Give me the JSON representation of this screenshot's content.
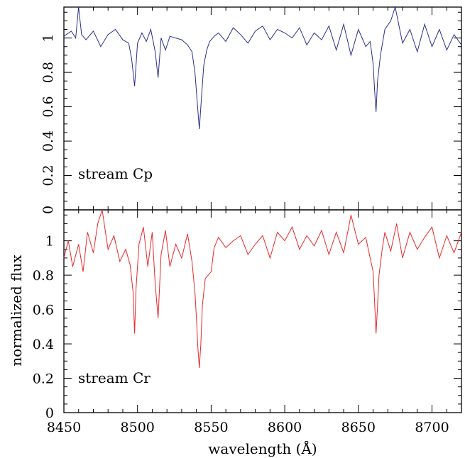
{
  "chart_data": {
    "type": "line",
    "xlabel": "wavelength (Å)",
    "ylabel": "normalized flux",
    "xlim": [
      8450,
      8720
    ],
    "x_ticks": [
      8450,
      8500,
      8550,
      8600,
      8650,
      8700
    ],
    "grid": false,
    "panels": [
      {
        "label": "stream Cp",
        "color": "#2a2f8f",
        "ylim": [
          0,
          1.18
        ],
        "y_ticks": [
          0,
          0.2,
          0.4,
          0.6,
          0.8,
          1
        ],
        "y_tick_labels": [
          "0",
          "0.2",
          "0.4",
          "0.6",
          "0.8",
          "1"
        ],
        "series": [
          {
            "x": [
              8450,
              8455,
              8458,
              8460,
              8462,
              8465,
              8470,
              8475,
              8480,
              8485,
              8490,
              8494,
              8496,
              8498,
              8500,
              8503,
              8506,
              8509,
              8512,
              8514,
              8516,
              8519,
              8522,
              8526,
              8530,
              8534,
              8537,
              8539,
              8541,
              8542,
              8543,
              8545,
              8547,
              8549,
              8552,
              8555,
              8560,
              8565,
              8570,
              8575,
              8580,
              8585,
              8590,
              8595,
              8600,
              8605,
              8610,
              8615,
              8620,
              8625,
              8630,
              8635,
              8640,
              8645,
              8650,
              8655,
              8658,
              8660,
              8661,
              8662,
              8663,
              8665,
              8668,
              8672,
              8675,
              8680,
              8685,
              8690,
              8695,
              8700,
              8705,
              8710,
              8715,
              8720
            ],
            "y": [
              1.01,
              1.04,
              1.0,
              1.2,
              1.02,
              0.99,
              1.04,
              0.95,
              1.02,
              1.05,
              0.99,
              0.97,
              0.88,
              0.72,
              0.97,
              1.03,
              0.98,
              1.05,
              0.92,
              0.77,
              1.0,
              0.93,
              1.01,
              1.0,
              0.99,
              0.96,
              0.92,
              0.8,
              0.58,
              0.47,
              0.6,
              0.84,
              0.93,
              0.98,
              1.01,
              1.03,
              0.98,
              1.06,
              1.02,
              0.97,
              1.04,
              1.07,
              0.99,
              1.05,
              1.03,
              1.0,
              1.06,
              0.96,
              1.03,
              0.99,
              1.07,
              0.93,
              1.08,
              0.9,
              1.05,
              0.95,
              0.98,
              0.85,
              0.7,
              0.57,
              0.75,
              0.9,
              1.05,
              1.1,
              1.2,
              0.97,
              1.05,
              0.92,
              1.08,
              0.95,
              1.05,
              0.93,
              1.02,
              0.96
            ]
          }
        ]
      },
      {
        "label": "stream Cr",
        "color": "#e8282a",
        "ylim": [
          0,
          1.18
        ],
        "y_ticks": [
          0,
          0.2,
          0.4,
          0.6,
          0.8,
          1
        ],
        "y_tick_labels": [
          "0",
          "0.2",
          "0.4",
          "0.6",
          "0.8",
          "1"
        ],
        "series": [
          {
            "x": [
              8450,
              8453,
              8456,
              8460,
              8463,
              8466,
              8470,
              8473,
              8476,
              8480,
              8484,
              8488,
              8492,
              8495,
              8497,
              8498,
              8499,
              8501,
              8504,
              8507,
              8510,
              8512,
              8514,
              8516,
              8519,
              8522,
              8526,
              8530,
              8534,
              8537,
              8539,
              8540,
              8541,
              8542,
              8543,
              8544,
              8546,
              8548,
              8550,
              8552,
              8555,
              8560,
              8565,
              8570,
              8575,
              8580,
              8585,
              8590,
              8595,
              8600,
              8605,
              8610,
              8615,
              8620,
              8625,
              8630,
              8635,
              8640,
              8645,
              8650,
              8655,
              8658,
              8660,
              8661,
              8662,
              8663,
              8664,
              8666,
              8668,
              8672,
              8676,
              8680,
              8685,
              8690,
              8695,
              8700,
              8705,
              8710,
              8715,
              8720
            ],
            "y": [
              0.9,
              1.0,
              0.85,
              0.98,
              0.82,
              1.05,
              0.93,
              1.1,
              1.2,
              0.95,
              1.03,
              0.88,
              0.95,
              0.86,
              0.7,
              0.46,
              0.72,
              0.98,
              1.08,
              0.85,
              1.05,
              0.75,
              0.55,
              0.92,
              1.06,
              0.85,
              0.98,
              0.9,
              1.04,
              0.88,
              0.7,
              0.55,
              0.38,
              0.26,
              0.4,
              0.62,
              0.78,
              0.8,
              0.82,
              0.96,
              1.02,
              0.96,
              1.0,
              1.03,
              0.92,
              0.98,
              1.03,
              0.9,
              1.05,
              1.0,
              1.08,
              0.95,
              1.03,
              0.97,
              1.06,
              0.92,
              1.05,
              0.93,
              1.15,
              0.98,
              1.02,
              0.9,
              0.82,
              0.65,
              0.46,
              0.62,
              0.8,
              0.94,
              1.05,
              0.94,
              1.1,
              0.9,
              1.05,
              0.95,
              1.02,
              1.08,
              0.9,
              1.03,
              0.93,
              1.05
            ]
          }
        ]
      }
    ]
  }
}
